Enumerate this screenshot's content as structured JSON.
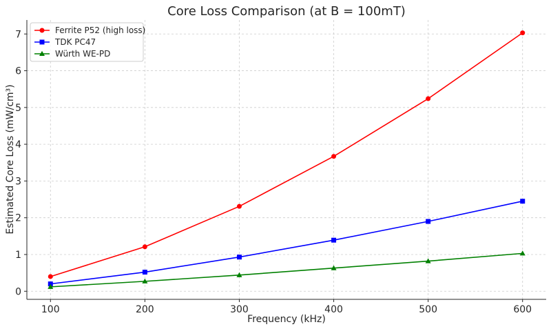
{
  "chart_data": {
    "type": "line",
    "title": "Core Loss Comparison (at B = 100mT)",
    "xlabel": "Frequency (kHz)",
    "ylabel": "Estimated Core Loss (mW/cm³)",
    "x": [
      100,
      200,
      300,
      400,
      500,
      600
    ],
    "xlim": [
      75,
      625
    ],
    "ylim": [
      -0.22,
      7.38
    ],
    "xticks": [
      100,
      200,
      300,
      400,
      500,
      600
    ],
    "yticks": [
      0,
      1,
      2,
      3,
      4,
      5,
      6,
      7
    ],
    "grid": true,
    "legend_position": "top-left",
    "series": [
      {
        "name": "Ferrite P52 (high loss)",
        "color": "#ff0000",
        "marker": "circle",
        "values": [
          0.4,
          1.21,
          2.31,
          3.67,
          5.24,
          7.03
        ]
      },
      {
        "name": "TDK PC47",
        "color": "#0000ff",
        "marker": "square",
        "values": [
          0.2,
          0.52,
          0.93,
          1.39,
          1.9,
          2.45
        ]
      },
      {
        "name": "Würth WE-PD",
        "color": "#008000",
        "marker": "triangle",
        "values": [
          0.12,
          0.27,
          0.44,
          0.63,
          0.82,
          1.03
        ]
      }
    ]
  }
}
